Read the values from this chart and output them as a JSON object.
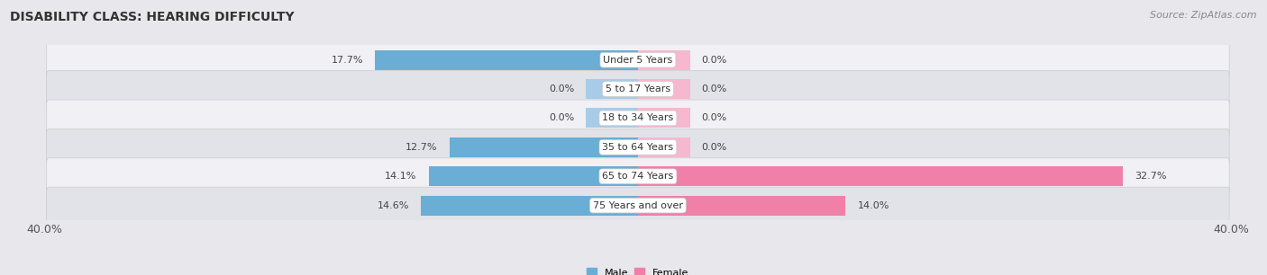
{
  "title": "DISABILITY CLASS: HEARING DIFFICULTY",
  "source": "Source: ZipAtlas.com",
  "categories": [
    "Under 5 Years",
    "5 to 17 Years",
    "18 to 34 Years",
    "35 to 64 Years",
    "65 to 74 Years",
    "75 Years and over"
  ],
  "male_values": [
    17.7,
    0.0,
    0.0,
    12.7,
    14.1,
    14.6
  ],
  "female_values": [
    0.0,
    0.0,
    0.0,
    0.0,
    32.7,
    14.0
  ],
  "male_color": "#6aadd5",
  "female_color": "#f080a8",
  "male_color_light": "#a8cce8",
  "female_color_light": "#f5b8cf",
  "male_label": "Male",
  "female_label": "Female",
  "axis_max": 40.0,
  "bg_color": "#e8e8ec",
  "row_colors": [
    "#f0f0f5",
    "#e2e2e9"
  ],
  "title_fontsize": 10,
  "source_fontsize": 8,
  "label_fontsize": 8,
  "value_fontsize": 8,
  "axis_label_fontsize": 9,
  "stub_value": 3.5
}
